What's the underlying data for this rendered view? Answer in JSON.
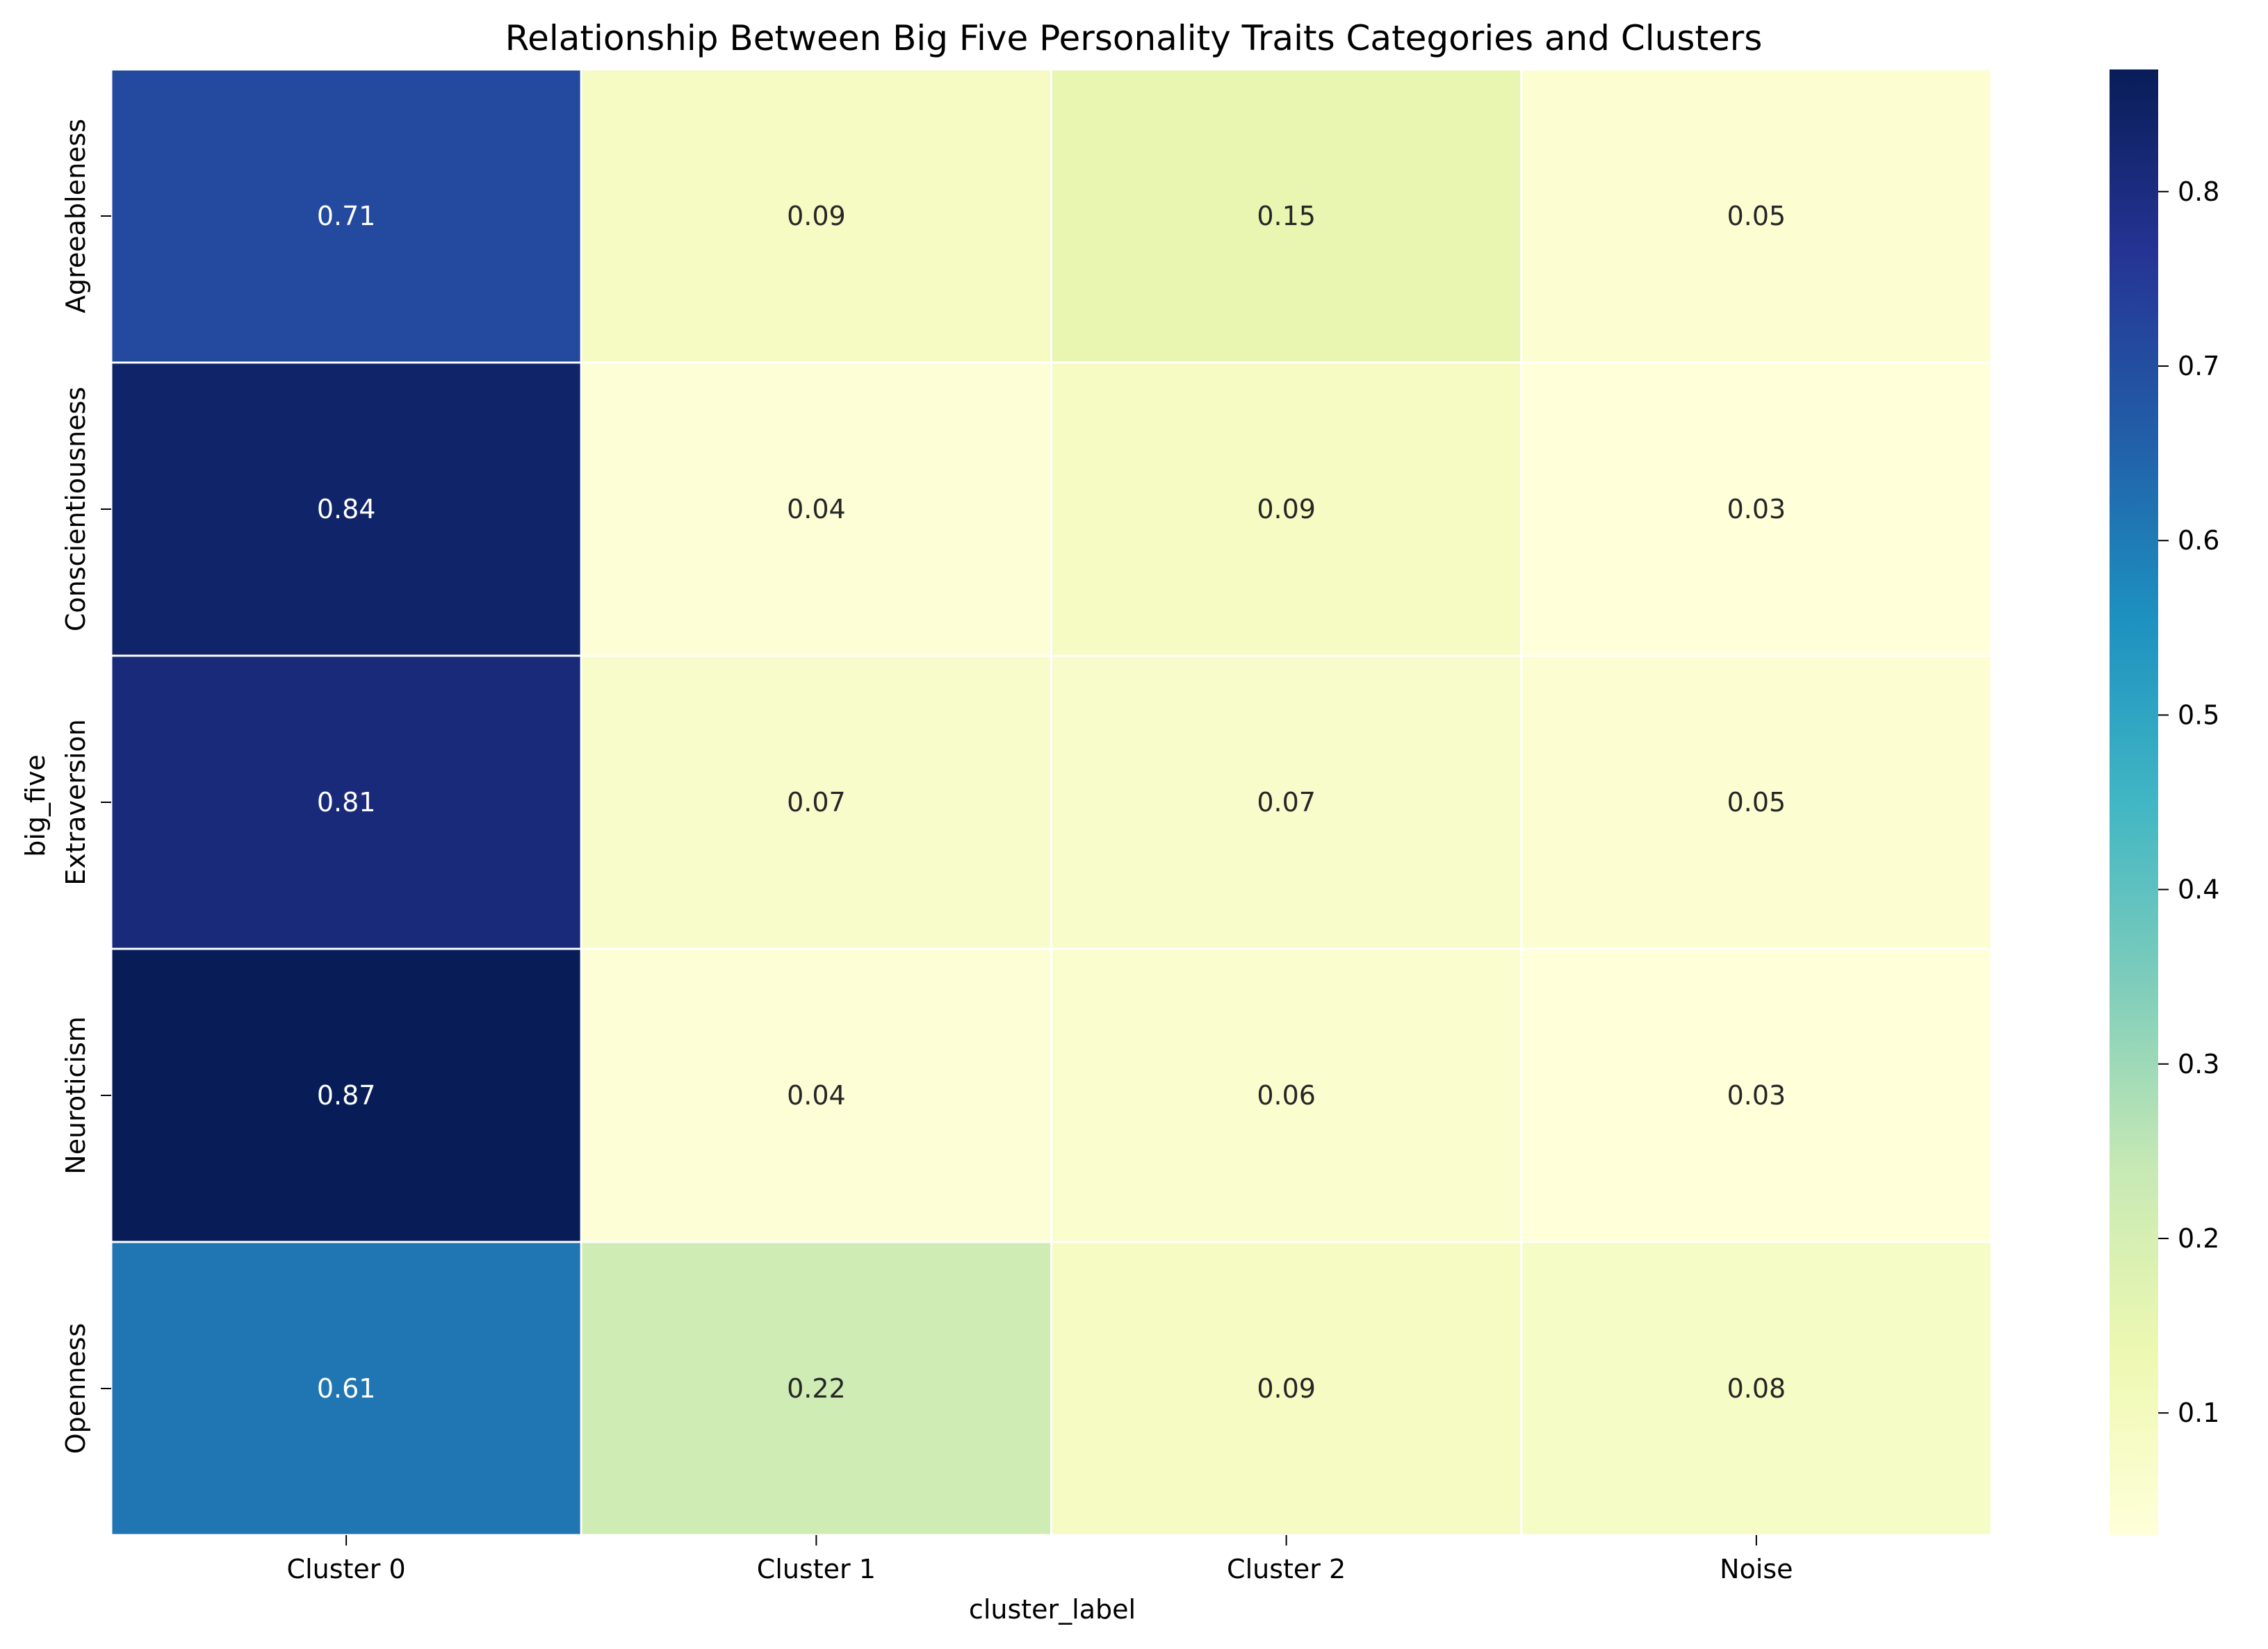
{
  "chart_data": {
    "type": "heatmap",
    "title": "Relationship Between Big Five Personality Traits Categories and Clusters",
    "xlabel": "cluster_label",
    "ylabel": "big_five",
    "x_categories": [
      "Cluster 0",
      "Cluster 1",
      "Cluster 2",
      "Noise"
    ],
    "y_categories": [
      "Agreeableness",
      "Conscientiousness",
      "Extraversion",
      "Neuroticism",
      "Openness"
    ],
    "values": [
      [
        0.71,
        0.09,
        0.15,
        0.05
      ],
      [
        0.84,
        0.04,
        0.09,
        0.03
      ],
      [
        0.81,
        0.07,
        0.07,
        0.05
      ],
      [
        0.87,
        0.04,
        0.06,
        0.03
      ],
      [
        0.61,
        0.22,
        0.09,
        0.08
      ]
    ],
    "value_format": "0.00",
    "colormap": "YlGnBu",
    "color_range": [
      0.03,
      0.87
    ],
    "colorbar_ticks": [
      0.1,
      0.2,
      0.3,
      0.4,
      0.5,
      0.6,
      0.7,
      0.8
    ],
    "colorbar_tick_labels": [
      "0.1",
      "0.2",
      "0.3",
      "0.4",
      "0.5",
      "0.6",
      "0.7",
      "0.8"
    ],
    "cell_border_color": "#ffffff",
    "legend": "colorbar-right"
  }
}
